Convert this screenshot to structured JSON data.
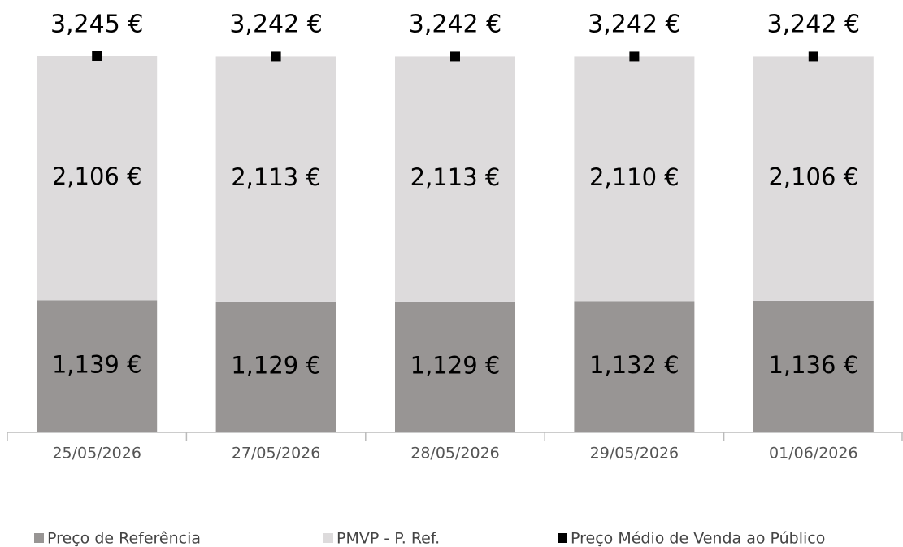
{
  "chart_data": {
    "type": "bar",
    "stacked": true,
    "categories": [
      "25/05/2026",
      "27/05/2026",
      "28/05/2026",
      "29/05/2026",
      "01/06/2026"
    ],
    "series": [
      {
        "name": "Preço de Referência",
        "type": "bar",
        "color": "#989594",
        "values": [
          1.139,
          1.129,
          1.129,
          1.132,
          1.136
        ],
        "value_labels": [
          "1,139 €",
          "1,129 €",
          "1,129 €",
          "1,132 €",
          "1,136 €"
        ]
      },
      {
        "name": "PMVP - P. Ref.",
        "type": "bar",
        "color": "#dddbdc",
        "values": [
          2.106,
          2.113,
          2.113,
          2.11,
          2.106
        ],
        "value_labels": [
          "2,106 €",
          "2,113 €",
          "2,113 €",
          "2,110 €",
          "2,106 €"
        ]
      },
      {
        "name": "Preço Médio de Venda ao Público",
        "type": "marker",
        "color": "#000000",
        "values": [
          3.245,
          3.242,
          3.242,
          3.242,
          3.242
        ],
        "value_labels": [
          "3,245 €",
          "3,242 €",
          "3,242 €",
          "3,242 €",
          "3,242 €"
        ]
      }
    ],
    "legend": "bottom"
  }
}
